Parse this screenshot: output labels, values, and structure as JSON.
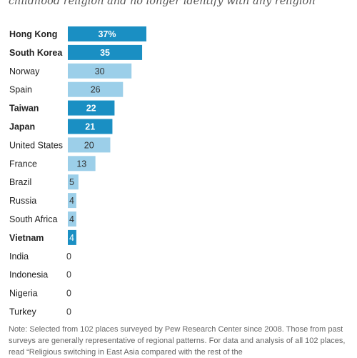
{
  "chart_data": {
    "type": "bar",
    "orientation": "horizontal",
    "subtitle": "childhood religion and no longer identify with any religion",
    "categories": [
      "Hong Kong",
      "South Korea",
      "Norway",
      "Spain",
      "Taiwan",
      "Japan",
      "United States",
      "France",
      "Brazil",
      "Russia",
      "South Africa",
      "Vietnam",
      "India",
      "Indonesia",
      "Nigeria",
      "Turkey"
    ],
    "values": [
      37,
      35,
      30,
      26,
      22,
      21,
      20,
      13,
      5,
      4,
      4,
      4,
      0,
      0,
      0,
      0
    ],
    "value_labels": [
      "37%",
      "35",
      "30",
      "26",
      "22",
      "21",
      "20",
      "13",
      "5",
      "4",
      "4",
      "4",
      "0",
      "0",
      "0",
      "0"
    ],
    "highlighted": [
      true,
      true,
      false,
      false,
      true,
      true,
      false,
      false,
      false,
      false,
      false,
      true,
      false,
      false,
      false,
      false
    ],
    "colors": {
      "highlight": "#1a8fc3",
      "other": "#9ccfe9",
      "highlight_text": "#ffffff",
      "other_text": "#333333"
    },
    "xlim": [
      0,
      37
    ]
  },
  "note": "Note: Selected from 102 places surveyed by Pew Research Center since 2008. Those from past surveys are generally representative of regional patterns. For data and analysis of all 102 places, read “Religious switching in East Asia compared with the rest of the"
}
